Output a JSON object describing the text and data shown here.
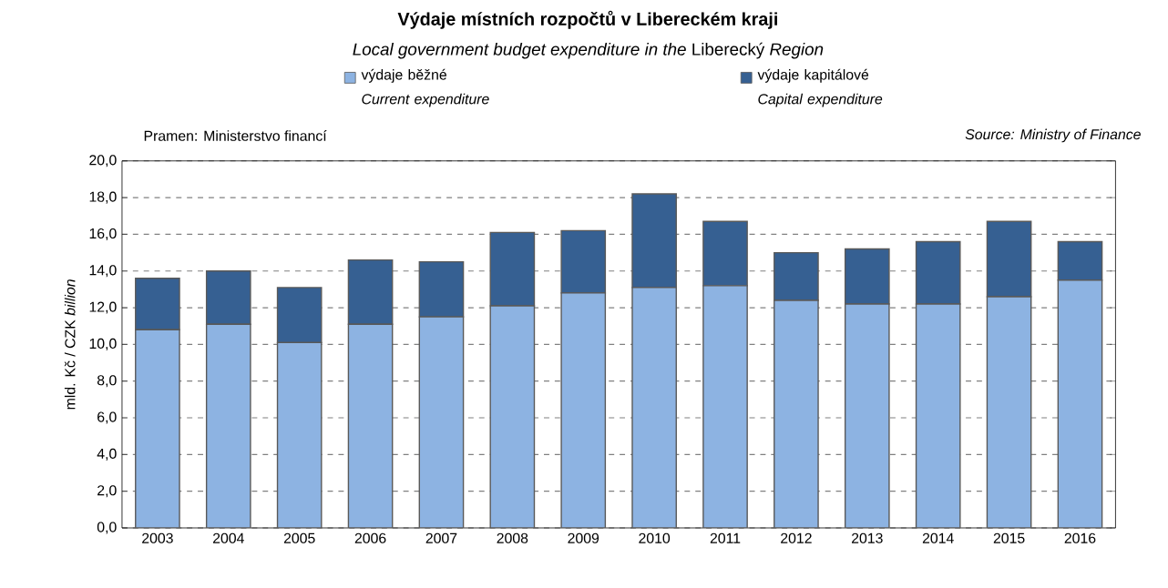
{
  "chart_data": {
    "type": "bar",
    "stacked": true,
    "title": "Výdaje místních rozpočtů v Libereckém kraji",
    "subtitle": "*Local government budget expenditure in the* Liberecký *Region*",
    "ylabel": "mld. Kč / CZK *billion*",
    "categories": [
      "2003",
      "2004",
      "2005",
      "2006",
      "2007",
      "2008",
      "2009",
      "2010",
      "2011",
      "2012",
      "2013",
      "2014",
      "2015",
      "2016"
    ],
    "series": [
      {
        "name": "výdaje běžné *Current expenditure*",
        "color": "#8db3e2",
        "values": [
          10.8,
          11.1,
          10.1,
          11.1,
          11.5,
          12.1,
          12.8,
          13.1,
          13.2,
          12.4,
          12.2,
          12.2,
          12.6,
          13.5
        ]
      },
      {
        "name": "výdaje kapitálové *Capital expenditure*",
        "color": "#366092",
        "values": [
          2.8,
          2.9,
          3.0,
          3.5,
          3.0,
          4.0,
          3.4,
          5.1,
          3.5,
          2.6,
          3.0,
          3.4,
          4.1,
          2.1
        ]
      }
    ],
    "ylim": [
      0,
      20
    ],
    "yticks": [
      {
        "value": 0,
        "label": "0,0"
      },
      {
        "value": 2,
        "label": "2,0"
      },
      {
        "value": 4,
        "label": "4,0"
      },
      {
        "value": 6,
        "label": "6,0"
      },
      {
        "value": 8,
        "label": "8,0"
      },
      {
        "value": 10,
        "label": "10,0"
      },
      {
        "value": 12,
        "label": "12,0"
      },
      {
        "value": 14,
        "label": "14,0"
      },
      {
        "value": 16,
        "label": "16,0"
      },
      {
        "value": 18,
        "label": "18,0"
      },
      {
        "value": 20,
        "label": "20,0"
      }
    ],
    "grid": "y",
    "legend": "top",
    "annotations": [
      "Pramen: Ministerstvo financí",
      "*Source: Ministry of Finance*"
    ]
  }
}
